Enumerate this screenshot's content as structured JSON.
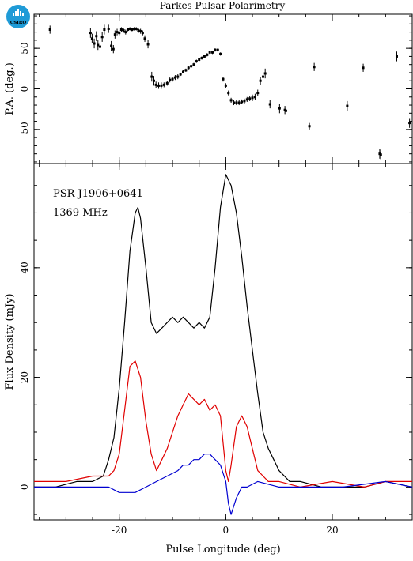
{
  "logo": {
    "text": "CSIRO",
    "color": "#1f9bd7",
    "icon": "csiro-logo-icon"
  },
  "figure_title": "Parkes Pulsar Polarimetry",
  "chart_data": [
    {
      "type": "scatter",
      "panel": "top",
      "ylabel": "P.A. (deg.)",
      "xlim": [
        -36,
        35
      ],
      "ylim": [
        -92,
        92
      ],
      "yticks": [
        -50,
        0,
        50
      ],
      "xticks": [
        -20,
        0,
        20
      ],
      "series": [
        {
          "color": "#000000",
          "x": [
            -33,
            -25.4,
            -25.1,
            -24.7,
            -24.3,
            -24.0,
            -23.6,
            -23.2,
            -22.8,
            -22,
            -21.5,
            -21.1,
            -20.8,
            -20.4,
            -20.0,
            -19.6,
            -19.2,
            -18.8,
            -18.4,
            -18.0,
            -17.6,
            -17.2,
            -16.8,
            -16.4,
            -16.0,
            -15.6,
            -15.2,
            -14.6,
            -13.9,
            -13.5,
            -13.1,
            -12.6,
            -12.1,
            -11.6,
            -11.0,
            -10.5,
            -10.0,
            -9.5,
            -9.0,
            -8.5,
            -8.0,
            -7.5,
            -7.0,
            -6.5,
            -6.0,
            -5.5,
            -5.0,
            -4.5,
            -4.0,
            -3.5,
            -3.0,
            -2.5,
            -2.0,
            -1.5,
            -1.0,
            -0.5,
            0.0,
            0.5,
            1.0,
            1.5,
            2.0,
            2.5,
            3.0,
            3.5,
            4.0,
            4.5,
            5.0,
            5.5,
            6.0,
            6.5,
            7.0,
            7.4,
            8.3,
            10.1,
            11.1,
            11.3,
            15.7,
            16.6,
            22.8,
            25.8,
            28.9,
            29.1,
            32.1,
            34.5
          ],
          "y": [
            73,
            69,
            62,
            56,
            65,
            54,
            52,
            64,
            73,
            74,
            53,
            49,
            67,
            70,
            69,
            73,
            72,
            70,
            73,
            74,
            73,
            74,
            74,
            72,
            71,
            69,
            62,
            55,
            15,
            10,
            5,
            4,
            4,
            5,
            7,
            11,
            12,
            14,
            15,
            18,
            21,
            23,
            26,
            28,
            30,
            34,
            36,
            38,
            40,
            42,
            45,
            45,
            48,
            48,
            43,
            12,
            4,
            -5,
            -14,
            -17,
            -17,
            -17,
            -16,
            -15,
            -13,
            -12,
            -11,
            -10,
            -5,
            10,
            15,
            19,
            -19,
            -24,
            -26,
            -27,
            -46,
            27,
            -21,
            26,
            -80,
            -81,
            40,
            -42
          ],
          "yerr": [
            5,
            6,
            6,
            6,
            6,
            6,
            6,
            6,
            6,
            5,
            6,
            5,
            5,
            4,
            3,
            3,
            3,
            3,
            2,
            2,
            2,
            2,
            2,
            3,
            3,
            3,
            4,
            5,
            6,
            6,
            4,
            4,
            4,
            3,
            3,
            3,
            3,
            3,
            3,
            2,
            2,
            2,
            2,
            2,
            2,
            2,
            2,
            2,
            2,
            2,
            2,
            2,
            2,
            2,
            2,
            3,
            3,
            3,
            3,
            3,
            3,
            3,
            3,
            3,
            3,
            3,
            4,
            4,
            4,
            5,
            6,
            6,
            5,
            6,
            5,
            5,
            4,
            5,
            6,
            5,
            6,
            6,
            6,
            6
          ]
        }
      ]
    },
    {
      "type": "line",
      "panel": "bottom",
      "xlabel": "Pulse Longitude (deg)",
      "ylabel": "Flux Density (mJy)",
      "xlim": [
        -36,
        35
      ],
      "ylim": [
        -6,
        59
      ],
      "yticks": [
        0,
        20,
        40
      ],
      "xticks": [
        -20,
        0,
        20
      ],
      "annotations": [
        "PSR J1906+0641",
        "1369 MHz"
      ],
      "series": [
        {
          "color": "#000000",
          "x": [
            -36,
            -32,
            -28,
            -25,
            -23,
            -22,
            -21,
            -20,
            -19,
            -18,
            -17,
            -16.5,
            -16,
            -15,
            -14,
            -13,
            -12,
            -11,
            -10,
            -9,
            -8,
            -7,
            -6,
            -5,
            -4,
            -3,
            -2,
            -1,
            0,
            1,
            2,
            3,
            4,
            5,
            6,
            7,
            8,
            9,
            10,
            12,
            14,
            18,
            22,
            26,
            30,
            35
          ],
          "y": [
            0,
            0,
            1,
            1,
            2,
            5,
            9,
            18,
            30,
            43,
            50,
            51,
            49,
            40,
            30,
            28,
            29,
            30,
            31,
            30,
            31,
            30,
            29,
            30,
            29,
            31,
            40,
            51,
            57,
            55,
            50,
            42,
            33,
            25,
            17,
            10,
            7,
            5,
            3,
            1,
            1,
            0,
            0,
            0,
            1,
            0
          ]
        },
        {
          "color": "#e00000",
          "x": [
            -36,
            -30,
            -25,
            -23,
            -22,
            -21,
            -20,
            -19,
            -18,
            -17,
            -16,
            -15,
            -14,
            -13,
            -12,
            -11,
            -10,
            -9,
            -8,
            -7,
            -6,
            -5,
            -4,
            -3,
            -2,
            -1,
            0,
            0.5,
            1,
            2,
            3,
            4,
            5,
            6,
            7,
            8,
            10,
            14,
            20,
            26,
            30,
            35
          ],
          "y": [
            1,
            1,
            2,
            2,
            2,
            3,
            6,
            14,
            22,
            23,
            20,
            12,
            6,
            3,
            5,
            7,
            10,
            13,
            15,
            17,
            16,
            15,
            16,
            14,
            15,
            13,
            3,
            1,
            4,
            11,
            13,
            11,
            7,
            3,
            2,
            1,
            1,
            0,
            1,
            0,
            1,
            1
          ]
        },
        {
          "color": "#0000d0",
          "x": [
            -36,
            -28,
            -22,
            -20,
            -17,
            -15,
            -13,
            -11,
            -9,
            -8,
            -7,
            -6,
            -5,
            -4,
            -3,
            -2,
            -1,
            0,
            0.5,
            1,
            2,
            3,
            4,
            6,
            10,
            15,
            22,
            30,
            35
          ],
          "y": [
            0,
            0,
            0,
            -1,
            -1,
            0,
            1,
            2,
            3,
            4,
            4,
            5,
            5,
            6,
            6,
            5,
            4,
            1,
            -3,
            -5,
            -2,
            0,
            0,
            1,
            0,
            0,
            0,
            1,
            0
          ]
        }
      ]
    }
  ]
}
